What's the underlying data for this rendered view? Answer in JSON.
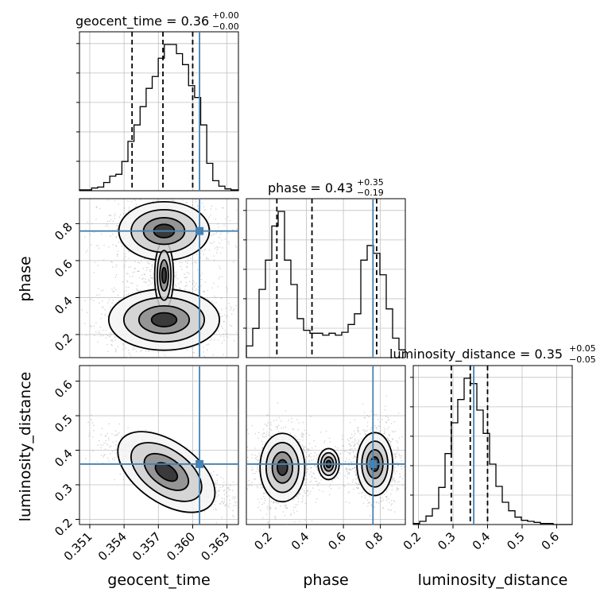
{
  "chart_data": {
    "type": "corner",
    "colors": {
      "truth": "#4682b4",
      "hist": "#000000",
      "grid": "#c0c0c0"
    },
    "parameters": [
      {
        "name": "geocent_time",
        "label": "geocent_time",
        "truth": 0.3606,
        "ticks": [
          "0.351",
          "0.354",
          "0.357",
          "0.360",
          "0.363"
        ]
      },
      {
        "name": "phase",
        "label": "phase",
        "truth": 0.76,
        "ticks": [
          "0.2",
          "0.4",
          "0.6",
          "0.8"
        ]
      },
      {
        "name": "luminosity_distance",
        "label": "luminosity_distance",
        "truth": 0.36,
        "ticks": [
          "0.2",
          "0.3",
          "0.4",
          "0.5",
          "0.6"
        ]
      }
    ],
    "ranges": {
      "geocent_time": [
        0.3501,
        0.364
      ],
      "phase": [
        0.075,
        0.935
      ],
      "luminosity_distance": [
        0.185,
        0.645
      ]
    },
    "titles": [
      {
        "param": "geocent_time",
        "text": "geocent_time = 0.36",
        "plus": "+0.00",
        "minus": "−0.00"
      },
      {
        "param": "phase",
        "text": "phase = 0.43",
        "plus": "+0.35",
        "minus": "−0.19"
      },
      {
        "param": "luminosity_distance",
        "text": "luminosity_distance = 0.35",
        "plus": "+0.05",
        "minus": "−0.05"
      }
    ],
    "quantiles": {
      "geocent_time": [
        0.3547,
        0.3574,
        0.36
      ],
      "phase": [
        0.24,
        0.43,
        0.78
      ],
      "luminosity_distance": [
        0.295,
        0.35,
        0.4
      ]
    },
    "histograms": {
      "geocent_time": {
        "edges": [
          0.3501,
          0.35063,
          0.35116,
          0.35169,
          0.35222,
          0.35275,
          0.35328,
          0.35381,
          0.35434,
          0.35487,
          0.3554,
          0.35593,
          0.35646,
          0.35699,
          0.35752,
          0.35805,
          0.35858,
          0.35911,
          0.35964,
          0.36017,
          0.3607,
          0.36123,
          0.36176,
          0.36229,
          0.36282,
          0.36335,
          0.364
        ],
        "counts": [
          1,
          1,
          3,
          4,
          9,
          16,
          18,
          32,
          54,
          72,
          92,
          112,
          125,
          145,
          160,
          160,
          150,
          138,
          115,
          102,
          72,
          30,
          11,
          5,
          2,
          1
        ]
      },
      "phase": {
        "edges": [
          0.075,
          0.1094,
          0.1438,
          0.1782,
          0.2126,
          0.247,
          0.2814,
          0.3158,
          0.3502,
          0.3846,
          0.419,
          0.4534,
          0.4878,
          0.5222,
          0.5566,
          0.591,
          0.6254,
          0.6598,
          0.6942,
          0.7286,
          0.763,
          0.7974,
          0.8318,
          0.8662,
          0.9006,
          0.935
        ],
        "counts": [
          12,
          30,
          70,
          100,
          135,
          150,
          100,
          75,
          40,
          28,
          25,
          25,
          23,
          25,
          23,
          26,
          34,
          45,
          100,
          115,
          107,
          85,
          50,
          20,
          8
        ]
      },
      "luminosity_distance": {
        "edges": [
          0.185,
          0.2034,
          0.2218,
          0.2402,
          0.2586,
          0.277,
          0.2954,
          0.3138,
          0.3322,
          0.3506,
          0.369,
          0.3874,
          0.4058,
          0.4242,
          0.4426,
          0.461,
          0.4794,
          0.4978,
          0.5162,
          0.5346,
          0.553,
          0.5714,
          0.5898,
          0.6082,
          0.6266,
          0.645
        ],
        "counts": [
          1,
          3,
          8,
          15,
          35,
          67,
          96,
          118,
          138,
          133,
          108,
          86,
          57,
          36,
          21,
          13,
          7,
          4,
          3,
          2,
          1,
          1,
          0,
          0,
          0
        ]
      }
    },
    "contour_blobs": {
      "phase_vs_geocent_time": [
        {
          "x": 0.3575,
          "y": 0.76,
          "sx": 0.002,
          "sy": 0.075,
          "w": 0.9
        },
        {
          "x": 0.3575,
          "y": 0.28,
          "sx": 0.0022,
          "sy": 0.075,
          "w": 1.0
        },
        {
          "x": 0.3575,
          "y": 0.52,
          "sx": 0.0015,
          "sy": 0.12,
          "w": 0.25
        }
      ],
      "luminosity_distance_vs_geocent_time": [
        {
          "x": 0.3577,
          "y": 0.337,
          "sx": 0.0022,
          "sy": 0.04,
          "rho": -0.8,
          "w": 1.0
        }
      ],
      "luminosity_distance_vs_phase": [
        {
          "x": 0.27,
          "y": 0.35,
          "sx": 0.055,
          "sy": 0.045,
          "w": 1.0
        },
        {
          "x": 0.77,
          "y": 0.36,
          "sx": 0.055,
          "sy": 0.045,
          "w": 0.8
        },
        {
          "x": 0.52,
          "y": 0.36,
          "sx": 0.13,
          "sy": 0.03,
          "w": 0.2
        }
      ]
    }
  }
}
